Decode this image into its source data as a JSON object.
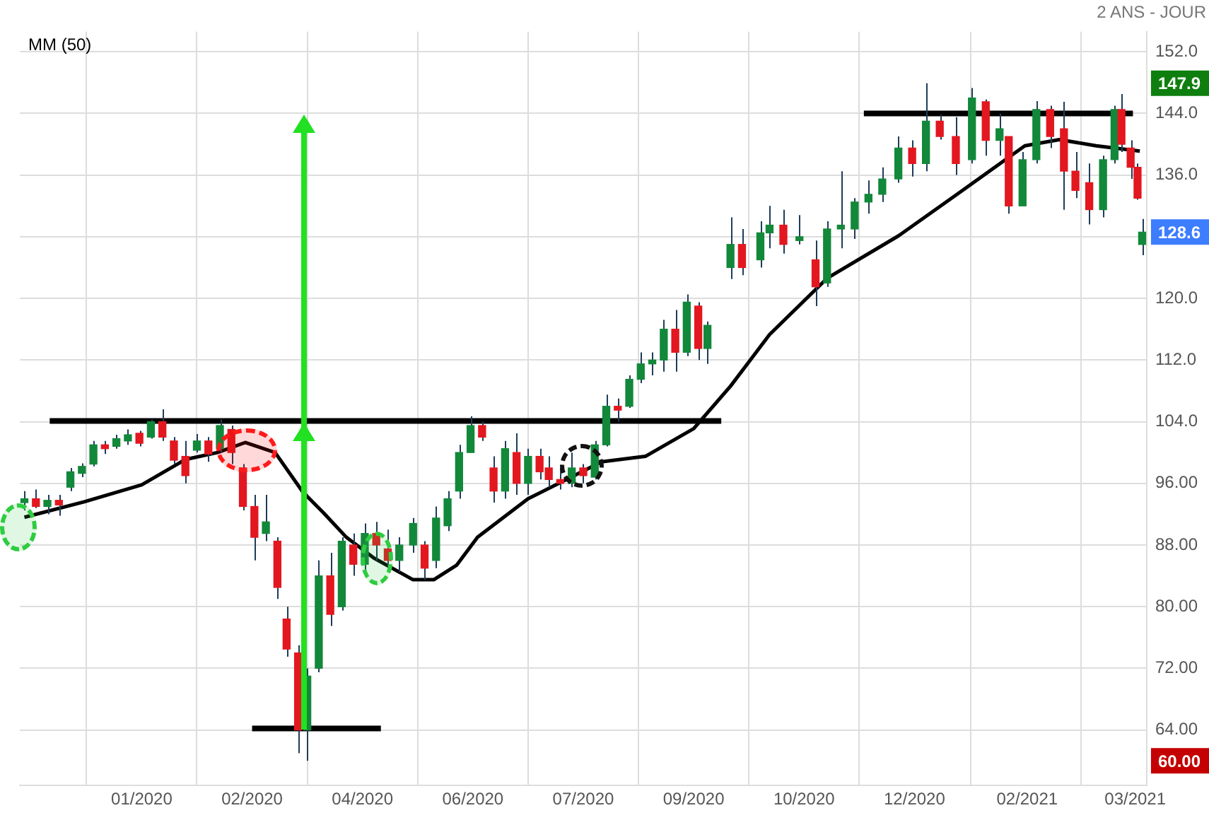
{
  "chart_data": {
    "type": "candlestick",
    "subtitle": "2 ANS - JOUR",
    "x": [
      "2019-11-21",
      "2019-11-26",
      "2019-12-01",
      "2019-12-06",
      "2019-12-11",
      "2019-12-16",
      "2019-12-21",
      "2019-12-26",
      "2019-12-31",
      "2020-01-05",
      "2020-01-10",
      "2020-01-15",
      "2020-01-20",
      "2020-01-25",
      "2020-01-30",
      "2020-02-04",
      "2020-02-09",
      "2020-02-14",
      "2020-02-19",
      "2020-02-24",
      "2020-02-29",
      "2020-03-05",
      "2020-03-10",
      "2020-03-14",
      "2020-03-19",
      "2020-03-23",
      "2020-03-28",
      "2020-04-02",
      "2020-04-07",
      "2020-04-12",
      "2020-04-17",
      "2020-04-22",
      "2020-04-27",
      "2020-05-02",
      "2020-05-08",
      "2020-05-13",
      "2020-05-18",
      "2020-05-23",
      "2020-05-28",
      "2020-06-02",
      "2020-06-07",
      "2020-06-12",
      "2020-06-17",
      "2020-06-22",
      "2020-06-27",
      "2020-07-02",
      "2020-07-06",
      "2020-07-11",
      "2020-07-16",
      "2020-07-21",
      "2020-07-26",
      "2020-07-31",
      "2020-08-05",
      "2020-08-10",
      "2020-08-15",
      "2020-08-20",
      "2020-08-25",
      "2020-08-30",
      "2020-09-04",
      "2020-09-09",
      "2020-09-13",
      "2020-09-23",
      "2020-09-28",
      "2020-10-06",
      "2020-10-10",
      "2020-10-16",
      "2020-10-23",
      "2020-10-30",
      "2020-11-04",
      "2020-11-10",
      "2020-11-16",
      "2020-11-22",
      "2020-11-28",
      "2020-12-05",
      "2020-12-11",
      "2020-12-17",
      "2020-12-23",
      "2020-12-30",
      "2021-01-06",
      "2021-01-12",
      "2021-01-18",
      "2021-01-22",
      "2021-01-28",
      "2021-02-03",
      "2021-02-09",
      "2021-02-15",
      "2021-02-20",
      "2021-02-26",
      "2021-03-04",
      "2021-03-09",
      "2021-03-12",
      "2021-03-16",
      "2021-03-19",
      "2021-03-21"
    ],
    "ohlc": [
      [
        93.5,
        95,
        92.5,
        94
      ],
      [
        94,
        95.2,
        92.8,
        93
      ],
      [
        93,
        94.5,
        92,
        93.8
      ],
      [
        93.8,
        94.5,
        91.8,
        93.2
      ],
      [
        95.5,
        98,
        95,
        97.5
      ],
      [
        97.3,
        98.6,
        96.8,
        98.2
      ],
      [
        98.5,
        101.5,
        98.2,
        101
      ],
      [
        101,
        101.5,
        99.8,
        100.5
      ],
      [
        100.8,
        102.3,
        100.5,
        101.8
      ],
      [
        101.5,
        103,
        101,
        102.3
      ],
      [
        102.5,
        102.8,
        100.8,
        101.2
      ],
      [
        102,
        104.3,
        101.8,
        104
      ],
      [
        104,
        105.6,
        101.5,
        102
      ],
      [
        101.5,
        102,
        98.5,
        99
      ],
      [
        99.5,
        101.5,
        96,
        97
      ],
      [
        100.3,
        102.4,
        100,
        101.5
      ],
      [
        101.5,
        102,
        98.8,
        99.8
      ],
      [
        100.5,
        104.3,
        100,
        103.5
      ],
      [
        103,
        103.5,
        98.5,
        100
      ],
      [
        98,
        98.5,
        92.5,
        93
      ],
      [
        93,
        94.5,
        86,
        89
      ],
      [
        89.5,
        94.5,
        88.5,
        91
      ],
      [
        88.5,
        89,
        81,
        82.5
      ],
      [
        78.4,
        80,
        73.5,
        74.5
      ],
      [
        74,
        75,
        61,
        64
      ],
      [
        64,
        72,
        60,
        71
      ],
      [
        72,
        86,
        71.5,
        84
      ],
      [
        84,
        87,
        77.5,
        79
      ],
      [
        80,
        89,
        79.5,
        88.5
      ],
      [
        88,
        89.5,
        84,
        85.5
      ],
      [
        85.5,
        90.8,
        84.8,
        89.5
      ],
      [
        89.5,
        91,
        86,
        88
      ],
      [
        87.5,
        90,
        85,
        86
      ],
      [
        86,
        89,
        84.5,
        88
      ],
      [
        88,
        91.5,
        87,
        90.8
      ],
      [
        88,
        88.5,
        83.5,
        85
      ],
      [
        86,
        93,
        85,
        91.5
      ],
      [
        90.5,
        95,
        89.8,
        94
      ],
      [
        95,
        101,
        94,
        100
      ],
      [
        100,
        104.7,
        100,
        103.5
      ],
      [
        103.5,
        104,
        101.5,
        102
      ],
      [
        98,
        99.5,
        93.5,
        95
      ],
      [
        95,
        101.5,
        94,
        100.5
      ],
      [
        100,
        102.5,
        94.5,
        96
      ],
      [
        96,
        100.5,
        94.5,
        99.5
      ],
      [
        99.5,
        100.5,
        96.5,
        97.5
      ],
      [
        98,
        99.5,
        95.5,
        96.5
      ],
      [
        96.5,
        98,
        95.2,
        96
      ],
      [
        96,
        100,
        95.5,
        98
      ],
      [
        98,
        98.5,
        96,
        97
      ],
      [
        96.8,
        101.5,
        96.5,
        101
      ],
      [
        101,
        107.5,
        100.8,
        106
      ],
      [
        106,
        107,
        104,
        105.5
      ],
      [
        106,
        110,
        105.8,
        109.5
      ],
      [
        109.5,
        113,
        109,
        111.5
      ],
      [
        111.5,
        113,
        110,
        112
      ],
      [
        112,
        117.2,
        110.5,
        116
      ],
      [
        116,
        118.5,
        110.5,
        113
      ],
      [
        113,
        120.5,
        112.5,
        119.5
      ],
      [
        119,
        119.5,
        112,
        113.5
      ],
      [
        113.5,
        117,
        111.5,
        116.5
      ],
      [
        124,
        130.5,
        122.5,
        127
      ],
      [
        127,
        129,
        123,
        124
      ],
      [
        125,
        130,
        124,
        128.5
      ],
      [
        128.5,
        132,
        126.5,
        129.5
      ],
      [
        129.5,
        131.5,
        125.8,
        127
      ],
      [
        127.5,
        130.8,
        127,
        128
      ],
      [
        125,
        127.5,
        119,
        121.5
      ],
      [
        122,
        130,
        121.5,
        129
      ],
      [
        129,
        136.5,
        126.5,
        129.5
      ],
      [
        129,
        133,
        127.7,
        132.5
      ],
      [
        132.5,
        135.3,
        131,
        133.5
      ],
      [
        133.5,
        137,
        132.5,
        135.5
      ],
      [
        135.5,
        141,
        135,
        139.5
      ],
      [
        139.5,
        140.5,
        135.8,
        137.5
      ],
      [
        137.5,
        147.9,
        136.5,
        143
      ],
      [
        143,
        143.8,
        140.6,
        141
      ],
      [
        141,
        143.5,
        136,
        137.5
      ],
      [
        138,
        147.3,
        137.5,
        146
      ],
      [
        145.5,
        145.8,
        138.5,
        140.5
      ],
      [
        140.5,
        144,
        138.5,
        142
      ],
      [
        141,
        141,
        131,
        132
      ],
      [
        132,
        139,
        132,
        138
      ],
      [
        138,
        145.6,
        137.5,
        144.5
      ],
      [
        144.5,
        145,
        139.5,
        141
      ],
      [
        142,
        145.5,
        131.5,
        136.5
      ],
      [
        136.5,
        139,
        133,
        134
      ],
      [
        135,
        137.5,
        129.6,
        131.5
      ],
      [
        131.5,
        138.5,
        130.5,
        138
      ],
      [
        138,
        145,
        137.5,
        144.5
      ],
      [
        144.5,
        146.5,
        139,
        140
      ],
      [
        139.5,
        140.5,
        135.5,
        137
      ],
      [
        137,
        137.5,
        132.8,
        133
      ],
      [
        127,
        130.3,
        125.6,
        128.6
      ]
    ],
    "colors": [
      "#12883a",
      "#e3171f",
      "#12883a",
      "#e3171f",
      "#12883a",
      "#12883a",
      "#12883a",
      "#e3171f",
      "#12883a",
      "#12883a",
      "#e3171f",
      "#12883a",
      "#e3171f",
      "#e3171f",
      "#e3171f",
      "#12883a",
      "#e3171f",
      "#12883a",
      "#e3171f",
      "#e3171f",
      "#e3171f",
      "#12883a",
      "#e3171f",
      "#e3171f",
      "#e3171f",
      "#12883a",
      "#12883a",
      "#e3171f",
      "#12883a",
      "#e3171f",
      "#12883a",
      "#e3171f",
      "#e3171f",
      "#12883a",
      "#12883a",
      "#e3171f",
      "#12883a",
      "#12883a",
      "#12883a",
      "#12883a",
      "#e3171f",
      "#e3171f",
      "#12883a",
      "#e3171f",
      "#12883a",
      "#e3171f",
      "#e3171f",
      "#e3171f",
      "#12883a",
      "#e3171f",
      "#12883a",
      "#12883a",
      "#e3171f",
      "#12883a",
      "#12883a",
      "#12883a",
      "#12883a",
      "#e3171f",
      "#12883a",
      "#e3171f",
      "#12883a",
      "#12883a",
      "#e3171f",
      "#12883a",
      "#12883a",
      "#e3171f",
      "#12883a",
      "#e3171f",
      "#12883a",
      "#12883a",
      "#12883a",
      "#12883a",
      "#12883a",
      "#12883a",
      "#e3171f",
      "#12883a",
      "#e3171f",
      "#e3171f",
      "#12883a",
      "#e3171f",
      "#12883a",
      "#e3171f",
      "#12883a",
      "#12883a",
      "#e3171f",
      "#e3171f",
      "#e3171f",
      "#e3171f",
      "#12883a",
      "#12883a",
      "#e3171f",
      "#e3171f",
      "#e3171f",
      "#12883a"
    ],
    "series": [
      {
        "name": "MM (50)",
        "type": "line",
        "color": "#000000",
        "x": [
          "2019-11-21",
          "2019-12-17",
          "2020-01-11",
          "2020-01-30",
          "2020-02-13",
          "2020-02-25",
          "2020-03-09",
          "2020-03-21",
          "2020-03-30",
          "2020-04-09",
          "2020-04-21",
          "2020-05-08",
          "2020-05-17",
          "2020-05-27",
          "2020-06-05",
          "2020-06-27",
          "2020-07-29",
          "2020-08-17",
          "2020-09-07",
          "2020-09-23",
          "2020-10-10",
          "2020-11-04",
          "2020-12-05",
          "2020-12-31",
          "2021-01-29",
          "2021-02-13",
          "2021-03-01",
          "2021-03-20"
        ],
        "values": [
          91.6,
          93.6,
          95.8,
          99.1,
          100,
          101.3,
          100,
          94.9,
          92.2,
          89,
          86.3,
          83.5,
          83.5,
          85.4,
          89,
          94,
          98.8,
          99.5,
          103.1,
          108.6,
          115.3,
          122.6,
          128.1,
          133.6,
          139.8,
          140.6,
          139.8,
          139.1
        ]
      },
      {
        "type": "line",
        "color": "#000000",
        "x": [
          "2019-12-02",
          "2020-09-19"
        ],
        "values": [
          104.1,
          104.1
        ]
      },
      {
        "type": "line",
        "color": "#000000",
        "x": [
          "2020-11-20",
          "2021-03-17"
        ],
        "values": [
          144,
          144
        ]
      },
      {
        "type": "line",
        "color": "#000000",
        "x": [
          "2020-02-28",
          "2020-04-24"
        ],
        "values": [
          64.2,
          64.2
        ]
      }
    ],
    "xlim": [
      "2019-11-19",
      "2021-03-23"
    ],
    "xticks": [
      {
        "value": "2020-01-11",
        "label": "01/2020"
      },
      {
        "value": "2020-02-28",
        "label": "02/2020"
      },
      {
        "value": "2020-04-16",
        "label": "04/2020"
      },
      {
        "value": "2020-06-03",
        "label": "06/2020"
      },
      {
        "value": "2020-07-21",
        "label": "07/2020"
      },
      {
        "value": "2020-09-07",
        "label": "09/2020"
      },
      {
        "value": "2020-10-25",
        "label": "10/2020"
      },
      {
        "value": "2020-12-12",
        "label": "12/2020"
      },
      {
        "value": "2021-01-30",
        "label": "02/2021"
      },
      {
        "value": "2021-03-18",
        "label": "03/2021"
      }
    ],
    "ylim": [
      56.8,
      154.6
    ],
    "yticks": [
      {
        "value": 64,
        "label": "64.00"
      },
      {
        "value": 72,
        "label": "72.00"
      },
      {
        "value": 80,
        "label": "80.00"
      },
      {
        "value": 88,
        "label": "88.00"
      },
      {
        "value": 96,
        "label": "96.00"
      },
      {
        "value": 104,
        "label": "104.0"
      },
      {
        "value": 112,
        "label": "112.0"
      },
      {
        "value": 120,
        "label": "120.0"
      },
      {
        "value": 128,
        "label": null
      },
      {
        "value": 136,
        "label": "136.0"
      },
      {
        "value": 144,
        "label": "144.0"
      },
      {
        "value": 152,
        "label": "152.0"
      }
    ],
    "grid": true,
    "legend": "top left",
    "marker": "none",
    "annotations": [
      "147.9",
      "128.6",
      "60.00"
    ]
  }
}
